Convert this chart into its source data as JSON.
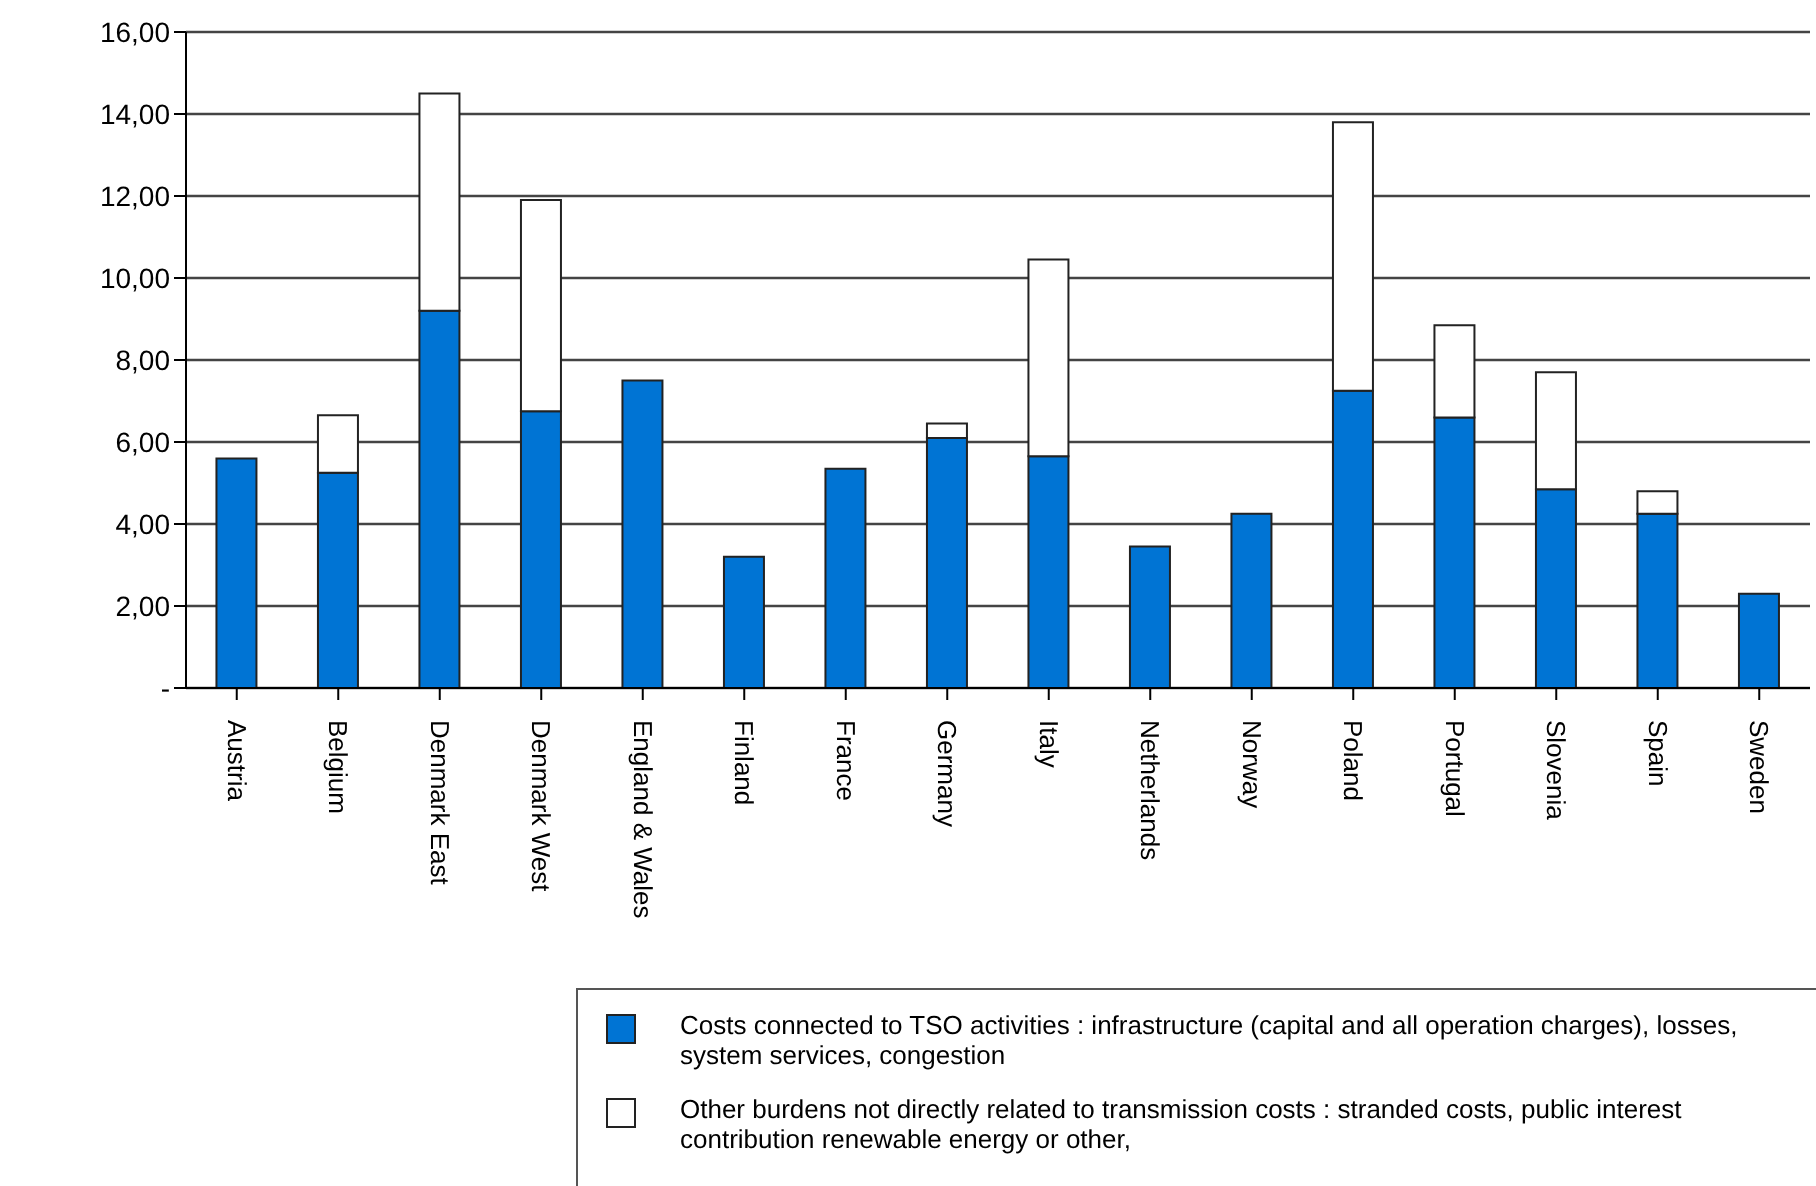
{
  "chart_data": {
    "type": "bar",
    "stacked": true,
    "categories": [
      "Austria",
      "Belgium",
      "Denmark East",
      "Denmark West",
      "England & Wales",
      "Finland",
      "France",
      "Germany",
      "Italy",
      "Netherlands",
      "Norway",
      "Poland",
      "Portugal",
      "Slovenia",
      "Spain",
      "Sweden"
    ],
    "series": [
      {
        "name": "Costs connected to TSO activities : infrastructure (capital and all operation charges), losses, system services, congestion",
        "color": "#0074d4",
        "values": [
          5.6,
          5.25,
          9.2,
          6.75,
          7.5,
          3.2,
          5.35,
          6.1,
          5.65,
          3.45,
          4.25,
          7.25,
          6.6,
          4.85,
          4.25,
          2.3
        ]
      },
      {
        "name": "Other burdens not directly related to transmission costs : stranded costs, public interest contribution renewable energy or other,",
        "color": "#ffffff",
        "values": [
          null,
          1.4,
          5.3,
          5.15,
          null,
          null,
          null,
          0.35,
          4.8,
          null,
          null,
          6.55,
          2.25,
          2.85,
          0.55,
          null
        ]
      }
    ],
    "ylim": [
      0,
      16
    ],
    "yticks": [
      {
        "value": 0,
        "label": "-"
      },
      {
        "value": 2,
        "label": "2,00"
      },
      {
        "value": 4,
        "label": "4,00"
      },
      {
        "value": 6,
        "label": "6,00"
      },
      {
        "value": 8,
        "label": "8,00"
      },
      {
        "value": 10,
        "label": "10,00"
      },
      {
        "value": 12,
        "label": "12,00"
      },
      {
        "value": 14,
        "label": "14,00"
      },
      {
        "value": 16,
        "label": "16,00"
      }
    ],
    "grid": "y",
    "legend": "bottom"
  }
}
